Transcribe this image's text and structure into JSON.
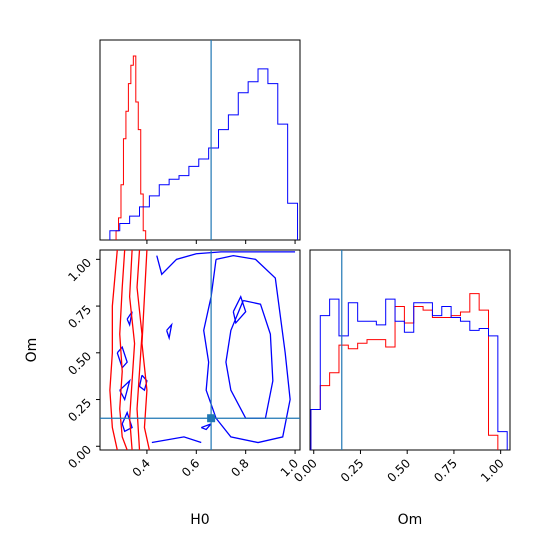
{
  "chart_data": [
    {
      "type": "histogram",
      "panel": "H0 marginal",
      "x_range": [
        0.21,
        1.02
      ],
      "xticks": [
        0.4,
        0.6,
        0.8,
        1.0
      ],
      "truth": 0.66,
      "series": [
        {
          "color": "#ff0000",
          "x": [
            0.28,
            0.29,
            0.3,
            0.31,
            0.32,
            0.33,
            0.34,
            0.35,
            0.36,
            0.37,
            0.38,
            0.39
          ],
          "heights": [
            0.05,
            0.12,
            0.3,
            0.55,
            0.7,
            0.85,
            0.95,
            1.0,
            0.75,
            0.6,
            0.25,
            0.05
          ]
        },
        {
          "color": "#0000ff",
          "x": [
            0.27,
            0.31,
            0.35,
            0.39,
            0.43,
            0.47,
            0.51,
            0.55,
            0.59,
            0.63,
            0.67,
            0.71,
            0.75,
            0.79,
            0.83,
            0.87,
            0.91,
            0.95,
            0.99
          ],
          "heights": [
            0.05,
            0.09,
            0.13,
            0.18,
            0.24,
            0.3,
            0.33,
            0.35,
            0.4,
            0.44,
            0.5,
            0.6,
            0.68,
            0.8,
            0.86,
            0.93,
            0.85,
            0.63,
            0.2
          ]
        }
      ]
    },
    {
      "type": "contour",
      "panel": "H0 vs Om",
      "xlabel": "H0",
      "ylabel": "Om",
      "x_range": [
        0.21,
        1.02
      ],
      "y_range": [
        -0.02,
        1.05
      ],
      "xticks": [
        "0.4",
        "0.6",
        "0.8",
        "1.0"
      ],
      "yticks": [
        "0.00",
        "0.25",
        "0.50",
        "0.75",
        "1.00"
      ],
      "truth": {
        "H0": 0.66,
        "Om": 0.15
      },
      "red_contours": [
        [
          [
            0.28,
            1.05
          ],
          [
            0.27,
            0.9
          ],
          [
            0.26,
            0.75
          ],
          [
            0.26,
            0.5
          ],
          [
            0.25,
            0.3
          ],
          [
            0.26,
            0.1
          ],
          [
            0.28,
            -0.02
          ]
        ],
        [
          [
            0.31,
            1.05
          ],
          [
            0.3,
            0.85
          ],
          [
            0.29,
            0.6
          ],
          [
            0.3,
            0.4
          ],
          [
            0.29,
            0.2
          ],
          [
            0.3,
            0.05
          ],
          [
            0.32,
            -0.02
          ]
        ],
        [
          [
            0.34,
            1.05
          ],
          [
            0.33,
            0.8
          ],
          [
            0.35,
            0.55
          ],
          [
            0.34,
            0.35
          ],
          [
            0.33,
            0.15
          ],
          [
            0.34,
            -0.02
          ]
        ],
        [
          [
            0.37,
            1.05
          ],
          [
            0.36,
            0.85
          ],
          [
            0.38,
            0.6
          ],
          [
            0.37,
            0.4
          ],
          [
            0.36,
            0.2
          ],
          [
            0.37,
            -0.02
          ]
        ],
        [
          [
            0.4,
            1.05
          ],
          [
            0.39,
            0.8
          ],
          [
            0.38,
            0.55
          ],
          [
            0.4,
            0.3
          ],
          [
            0.39,
            0.1
          ],
          [
            0.41,
            -0.02
          ]
        ]
      ],
      "blue_contours": [
        [
          [
            0.68,
            1.0
          ],
          [
            0.66,
            0.8
          ],
          [
            0.63,
            0.62
          ],
          [
            0.65,
            0.45
          ],
          [
            0.64,
            0.3
          ],
          [
            0.68,
            0.15
          ],
          [
            0.74,
            0.05
          ],
          [
            0.85,
            0.02
          ],
          [
            0.95,
            0.05
          ],
          [
            0.98,
            0.25
          ],
          [
            0.96,
            0.5
          ],
          [
            0.94,
            0.7
          ],
          [
            0.92,
            0.9
          ],
          [
            0.84,
            1.0
          ],
          [
            0.75,
            1.02
          ],
          [
            0.68,
            1.0
          ]
        ],
        [
          [
            0.79,
            0.78
          ],
          [
            0.74,
            0.62
          ],
          [
            0.72,
            0.45
          ],
          [
            0.74,
            0.3
          ],
          [
            0.8,
            0.15
          ],
          [
            0.88,
            0.15
          ],
          [
            0.91,
            0.35
          ],
          [
            0.9,
            0.6
          ],
          [
            0.86,
            0.76
          ],
          [
            0.79,
            0.78
          ]
        ],
        [
          [
            0.44,
            1.02
          ],
          [
            0.46,
            0.92
          ],
          [
            0.52,
            1.0
          ],
          [
            0.6,
            1.03
          ],
          [
            0.7,
            1.04
          ],
          [
            0.9,
            1.04
          ],
          [
            1.0,
            1.04
          ]
        ],
        [
          [
            0.28,
            0.5
          ],
          [
            0.3,
            0.53
          ],
          [
            0.32,
            0.45
          ],
          [
            0.3,
            0.42
          ],
          [
            0.28,
            0.5
          ]
        ],
        [
          [
            0.29,
            0.3
          ],
          [
            0.33,
            0.35
          ],
          [
            0.31,
            0.25
          ],
          [
            0.29,
            0.3
          ]
        ],
        [
          [
            0.38,
            0.38
          ],
          [
            0.4,
            0.35
          ],
          [
            0.39,
            0.3
          ],
          [
            0.37,
            0.32
          ],
          [
            0.38,
            0.38
          ]
        ],
        [
          [
            0.32,
            0.68
          ],
          [
            0.34,
            0.72
          ],
          [
            0.33,
            0.65
          ],
          [
            0.32,
            0.68
          ]
        ],
        [
          [
            0.48,
            0.62
          ],
          [
            0.5,
            0.65
          ],
          [
            0.49,
            0.58
          ],
          [
            0.48,
            0.62
          ]
        ],
        [
          [
            0.75,
            0.72
          ],
          [
            0.78,
            0.8
          ],
          [
            0.8,
            0.72
          ],
          [
            0.76,
            0.66
          ],
          [
            0.75,
            0.72
          ]
        ],
        [
          [
            0.3,
            0.12
          ],
          [
            0.32,
            0.18
          ],
          [
            0.34,
            0.1
          ],
          [
            0.31,
            0.08
          ],
          [
            0.3,
            0.12
          ]
        ],
        [
          [
            0.42,
            0.02
          ],
          [
            0.55,
            0.05
          ],
          [
            0.62,
            0.02
          ]
        ],
        [
          [
            0.62,
            0.1
          ],
          [
            0.66,
            0.12
          ],
          [
            0.64,
            0.09
          ],
          [
            0.62,
            0.1
          ]
        ]
      ]
    },
    {
      "type": "histogram",
      "panel": "Om marginal",
      "x_range": [
        -0.02,
        1.05
      ],
      "xticks": [
        "0.00",
        "0.25",
        "0.50",
        "0.75",
        "1.00"
      ],
      "truth": 0.15,
      "series": [
        {
          "color": "#ff0000",
          "x": [
            0.01,
            0.06,
            0.11,
            0.16,
            0.21,
            0.26,
            0.31,
            0.36,
            0.41,
            0.46,
            0.51,
            0.56,
            0.61,
            0.66,
            0.71,
            0.76,
            0.81,
            0.86,
            0.91,
            0.96
          ],
          "heights": [
            0.22,
            0.35,
            0.42,
            0.57,
            0.55,
            0.58,
            0.6,
            0.6,
            0.56,
            0.78,
            0.69,
            0.78,
            0.76,
            0.72,
            0.72,
            0.73,
            0.75,
            0.85,
            0.76,
            0.08
          ]
        },
        {
          "color": "#0000ff",
          "x": [
            0.01,
            0.06,
            0.11,
            0.16,
            0.21,
            0.26,
            0.31,
            0.36,
            0.41,
            0.46,
            0.51,
            0.56,
            0.61,
            0.66,
            0.71,
            0.76,
            0.81,
            0.86,
            0.91,
            0.96,
            1.01
          ],
          "heights": [
            0.22,
            0.73,
            0.82,
            0.62,
            0.8,
            0.7,
            0.7,
            0.68,
            0.82,
            0.7,
            0.64,
            0.8,
            0.8,
            0.73,
            0.78,
            0.72,
            0.7,
            0.65,
            0.66,
            0.62,
            0.1
          ]
        }
      ]
    }
  ]
}
